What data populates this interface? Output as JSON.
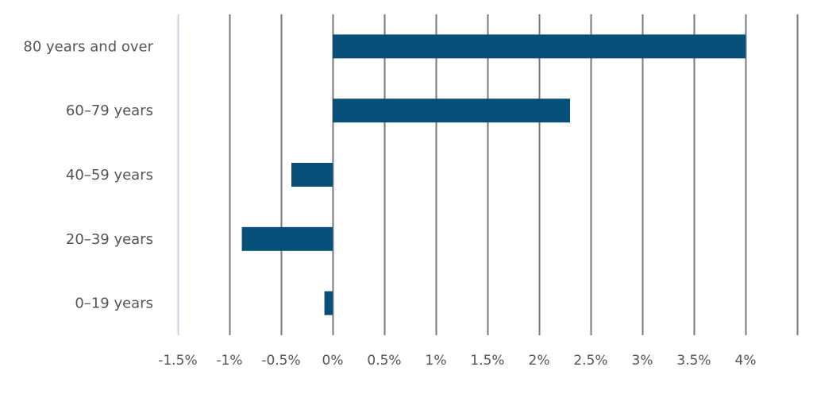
{
  "chart_data": {
    "type": "bar",
    "orientation": "horizontal",
    "title": "",
    "xlabel": "",
    "ylabel": "",
    "categories": [
      "80 years and over",
      "60–79 years",
      "40–59 years",
      "20–39 years",
      "0–19 years"
    ],
    "values": [
      4.0,
      2.3,
      -0.4,
      -0.88,
      -0.08
    ],
    "unit": "%",
    "xlim": [
      -1.5,
      4.5
    ],
    "x_ticks": [
      -1.5,
      -1,
      -0.5,
      0,
      0.5,
      1,
      1.5,
      2,
      2.5,
      3,
      3.5,
      4
    ],
    "x_tick_labels": [
      "-1.5%",
      "-1%",
      "-0.5%",
      "0%",
      "0.5%",
      "1%",
      "1.5%",
      "2%",
      "2.5%",
      "3%",
      "3.5%",
      "4%"
    ],
    "grid": "vertical",
    "legend": "none",
    "colors": {
      "bar": "#064f78",
      "gridline": "#7a7a7a",
      "first_gridline": "#c5d3e0",
      "text": "#555555"
    }
  }
}
